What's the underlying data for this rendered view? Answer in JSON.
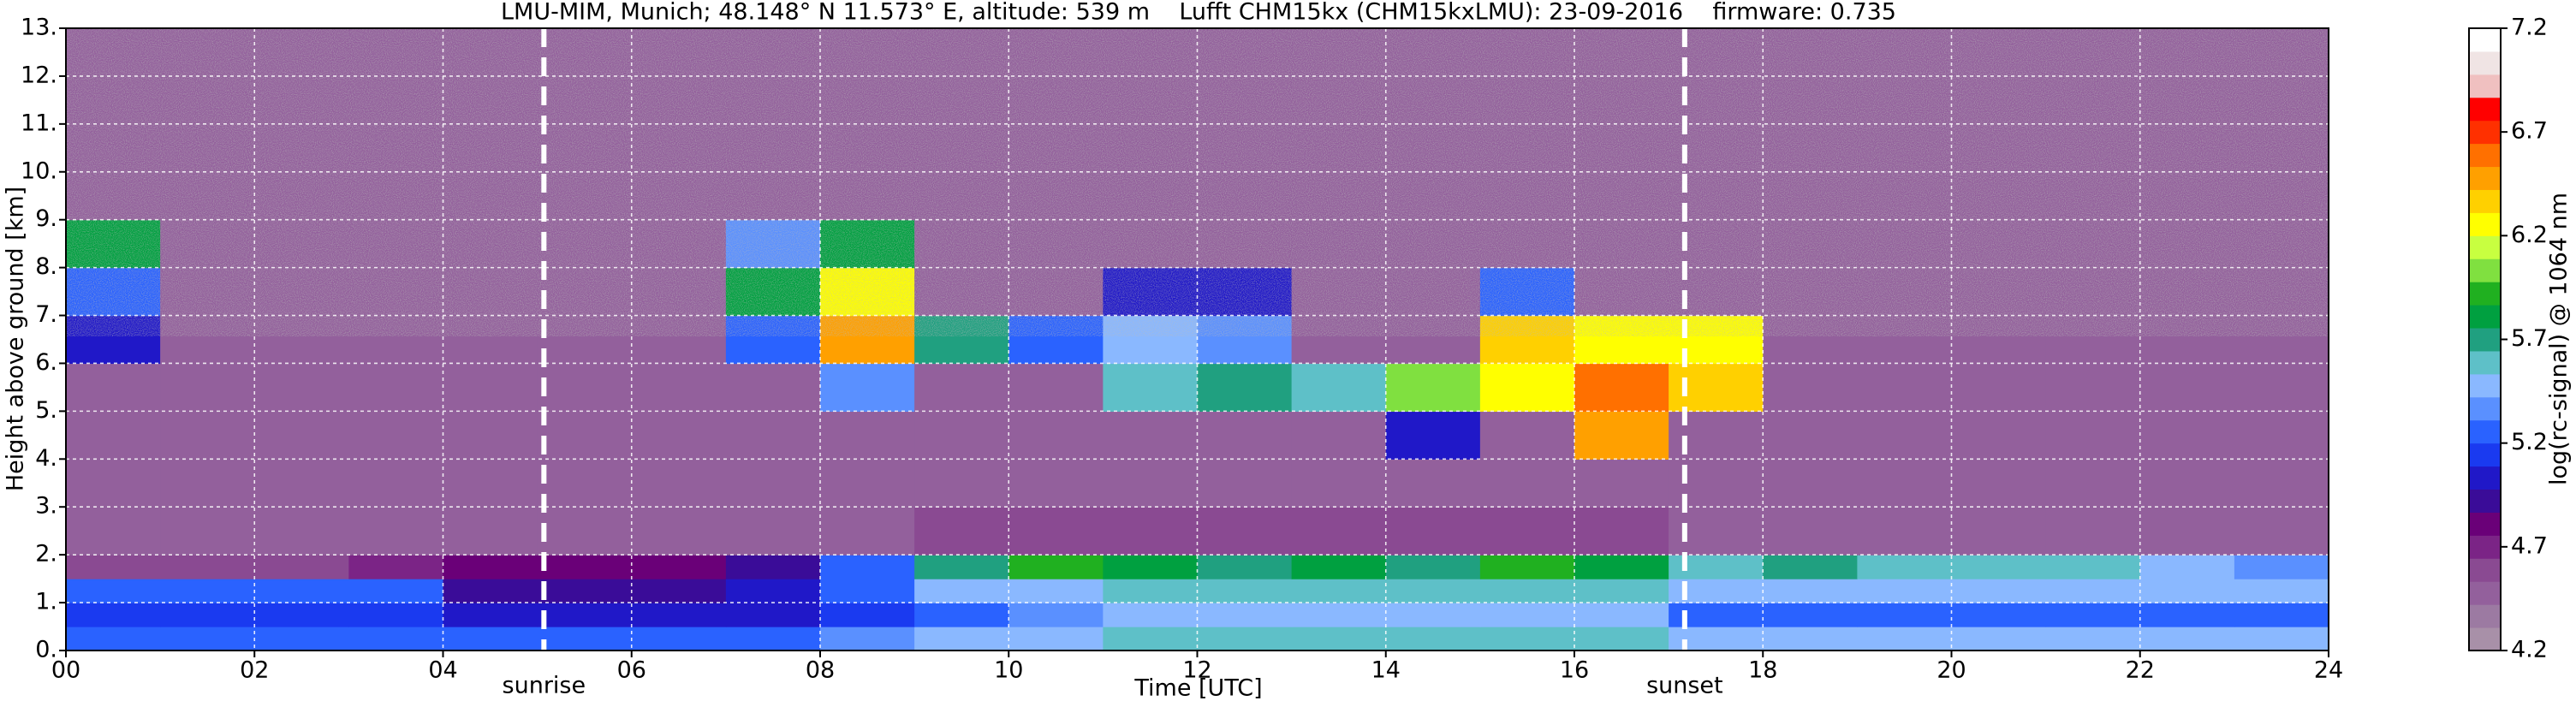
{
  "chart_data": {
    "type": "heatmap",
    "title": "LMU-MIM, Munich; 48.148° N 11.573° E, altitude: 539 m    Lufft CHM15kx (CHM15kxLMU): 23-09-2016    firmware: 0.735",
    "xlabel": "Time [UTC]",
    "ylabel": "Height above ground [km]",
    "xlim": [
      0,
      24
    ],
    "ylim": [
      0,
      13
    ],
    "xticks": [
      {
        "value": 0,
        "label": "00"
      },
      {
        "value": 2,
        "label": "02"
      },
      {
        "value": 4,
        "label": "04"
      },
      {
        "value": 6,
        "label": "06"
      },
      {
        "value": 8,
        "label": "08"
      },
      {
        "value": 10,
        "label": "10"
      },
      {
        "value": 12,
        "label": "12"
      },
      {
        "value": 14,
        "label": "14"
      },
      {
        "value": 16,
        "label": "16"
      },
      {
        "value": 18,
        "label": "18"
      },
      {
        "value": 20,
        "label": "20"
      },
      {
        "value": 22,
        "label": "22"
      },
      {
        "value": 24,
        "label": "24"
      }
    ],
    "yticks": [
      {
        "value": 0,
        "label": "0."
      },
      {
        "value": 1,
        "label": "1."
      },
      {
        "value": 2,
        "label": "2."
      },
      {
        "value": 3,
        "label": "3."
      },
      {
        "value": 4,
        "label": "4."
      },
      {
        "value": 5,
        "label": "5."
      },
      {
        "value": 6,
        "label": "6."
      },
      {
        "value": 7,
        "label": "7."
      },
      {
        "value": 8,
        "label": "8."
      },
      {
        "value": 9,
        "label": "9."
      },
      {
        "value": 10,
        "label": "10."
      },
      {
        "value": 11,
        "label": "11."
      },
      {
        "value": 12,
        "label": "12."
      },
      {
        "value": 13,
        "label": "13."
      }
    ],
    "grid": true,
    "x_edges": [
      0,
      1,
      2,
      3,
      4,
      5,
      6,
      7,
      8,
      9,
      10,
      11,
      12,
      13,
      14,
      15,
      16,
      17,
      18,
      19,
      20,
      21,
      22,
      23,
      24
    ],
    "y_edges": [
      0,
      0.5,
      1,
      1.5,
      2,
      3,
      4,
      5,
      6,
      7,
      8,
      9,
      10,
      11,
      13
    ],
    "z": [
      [
        5.2,
        5.2,
        5.2,
        5.2,
        5.2,
        5.2,
        5.2,
        5.2,
        5.4,
        5.5,
        5.5,
        5.6,
        5.6,
        5.6,
        5.6,
        5.6,
        5.6,
        5.5,
        5.5,
        5.5,
        5.5,
        5.5,
        5.5,
        5.5
      ],
      [
        5.1,
        5.1,
        5.1,
        5.1,
        5.0,
        5.0,
        5.0,
        5.0,
        5.1,
        5.3,
        5.4,
        5.5,
        5.5,
        5.5,
        5.5,
        5.5,
        5.5,
        5.3,
        5.3,
        5.3,
        5.3,
        5.3,
        5.3,
        5.3
      ],
      [
        5.3,
        5.3,
        5.3,
        5.2,
        4.9,
        4.9,
        4.9,
        5.0,
        5.3,
        5.5,
        5.5,
        5.6,
        5.6,
        5.6,
        5.6,
        5.6,
        5.6,
        5.5,
        5.5,
        5.5,
        5.5,
        5.5,
        5.5,
        5.5
      ],
      [
        4.6,
        4.6,
        4.6,
        4.7,
        4.8,
        4.8,
        4.8,
        4.9,
        5.3,
        5.7,
        5.9,
        5.8,
        5.7,
        5.8,
        5.7,
        5.9,
        5.8,
        5.6,
        5.7,
        5.6,
        5.6,
        5.6,
        5.5,
        5.4
      ],
      [
        4.5,
        4.5,
        4.5,
        4.5,
        4.5,
        4.5,
        4.5,
        4.5,
        4.5,
        4.6,
        4.6,
        4.6,
        4.6,
        4.6,
        4.6,
        4.6,
        4.6,
        4.5,
        4.5,
        4.5,
        4.5,
        4.5,
        4.5,
        4.5
      ],
      [
        4.5,
        4.5,
        4.5,
        4.5,
        4.5,
        4.5,
        4.5,
        4.5,
        4.5,
        4.5,
        4.5,
        4.5,
        4.5,
        4.5,
        4.5,
        4.5,
        4.5,
        4.5,
        4.5,
        4.5,
        4.5,
        4.5,
        4.5,
        4.5
      ],
      [
        4.5,
        4.5,
        4.5,
        4.5,
        4.5,
        4.5,
        4.5,
        4.5,
        4.5,
        4.5,
        4.5,
        4.5,
        4.5,
        4.5,
        5.0,
        4.5,
        6.5,
        4.5,
        4.5,
        4.5,
        4.5,
        4.5,
        4.5,
        4.5
      ],
      [
        4.5,
        4.5,
        4.5,
        4.5,
        4.5,
        4.5,
        4.5,
        4.5,
        5.4,
        4.5,
        4.5,
        5.6,
        5.7,
        5.6,
        6.0,
        6.3,
        6.6,
        6.4,
        4.5,
        4.5,
        4.5,
        4.5,
        4.5,
        4.5
      ],
      [
        5.0,
        4.5,
        4.5,
        4.5,
        4.5,
        4.5,
        4.5,
        5.3,
        6.5,
        5.7,
        5.2,
        5.5,
        5.4,
        4.5,
        4.5,
        6.4,
        6.2,
        6.2,
        4.5,
        4.5,
        4.5,
        4.5,
        4.5,
        4.5
      ],
      [
        5.3,
        4.5,
        4.5,
        4.5,
        4.5,
        4.5,
        4.5,
        5.8,
        6.2,
        4.5,
        4.5,
        5.0,
        5.0,
        4.5,
        4.5,
        5.2,
        4.5,
        4.5,
        4.5,
        4.5,
        4.5,
        4.5,
        4.5,
        4.5
      ],
      [
        5.8,
        4.5,
        4.5,
        4.5,
        4.5,
        4.5,
        4.5,
        5.4,
        5.8,
        4.5,
        4.5,
        4.5,
        4.5,
        4.5,
        4.5,
        4.5,
        4.5,
        4.5,
        4.5,
        4.5,
        4.5,
        4.5,
        4.5,
        4.5
      ],
      [
        4.5,
        4.5,
        4.5,
        4.5,
        4.5,
        4.5,
        4.5,
        4.5,
        4.5,
        4.5,
        4.5,
        4.5,
        4.5,
        4.5,
        4.5,
        4.5,
        4.5,
        4.5,
        4.5,
        4.5,
        4.5,
        4.5,
        4.5,
        4.5
      ],
      [
        4.5,
        4.5,
        4.5,
        4.5,
        4.5,
        4.5,
        4.5,
        4.5,
        4.5,
        4.5,
        4.5,
        4.5,
        4.5,
        4.5,
        4.5,
        4.5,
        4.5,
        4.5,
        4.5,
        4.5,
        4.5,
        4.5,
        4.5,
        4.5
      ],
      [
        4.5,
        4.5,
        4.5,
        4.5,
        4.5,
        4.5,
        4.5,
        4.5,
        4.5,
        4.5,
        4.5,
        4.5,
        4.5,
        4.5,
        4.5,
        4.5,
        4.5,
        4.5,
        4.5,
        4.5,
        4.5,
        4.5,
        4.5,
        4.5
      ]
    ],
    "clim": [
      4.2,
      7.2
    ],
    "cticks": [
      4.2,
      4.7,
      5.2,
      5.7,
      6.2,
      6.7,
      7.2
    ],
    "clabel": "log(rc-signal) @ 1064 nm",
    "colormap": [
      "#a890a8",
      "#9c7aa2",
      "#93609c",
      "#8a4a92",
      "#7b2486",
      "#6a0078",
      "#3a0c98",
      "#2018c8",
      "#1a3af0",
      "#2a62ff",
      "#5a90ff",
      "#8ab8ff",
      "#5ec0c8",
      "#20a080",
      "#00a040",
      "#20b020",
      "#80e040",
      "#c8ff40",
      "#ffff00",
      "#ffd000",
      "#ffa000",
      "#ff7000",
      "#ff3000",
      "#ff0000",
      "#f0c0c0",
      "#f0e4e4",
      "#ffffff"
    ],
    "annotations": [
      {
        "x": 5.07,
        "label": "sunrise"
      },
      {
        "x": 17.17,
        "label": "sunset"
      }
    ]
  }
}
